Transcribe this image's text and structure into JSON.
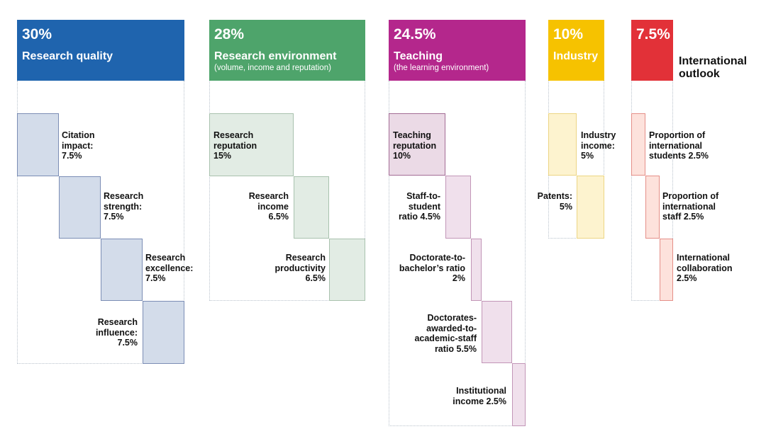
{
  "colors": {
    "blue": "#1f64ae",
    "green": "#4ea46b",
    "magenta": "#b4278c",
    "yellow": "#f6c200",
    "red": "#e23138"
  },
  "pillars": [
    {
      "percent": "30%",
      "title": "Research quality",
      "subtitle": "",
      "metrics": [
        {
          "lines": [
            "Citation",
            "impact:",
            "7.5%"
          ]
        },
        {
          "lines": [
            "Research",
            "strength:",
            "7.5%"
          ]
        },
        {
          "lines": [
            "Research",
            "excellence:",
            "7.5%"
          ]
        },
        {
          "lines": [
            "Research",
            "influence:",
            "7.5%"
          ]
        }
      ]
    },
    {
      "percent": "28%",
      "title": "Research environment",
      "subtitle": "(volume, income and reputation)",
      "metrics": [
        {
          "lines": [
            "Research",
            "reputation",
            "15%"
          ]
        },
        {
          "lines": [
            "Research",
            "income",
            "6.5%"
          ]
        },
        {
          "lines": [
            "Research",
            "productivity",
            "6.5%"
          ]
        }
      ]
    },
    {
      "percent": "24.5%",
      "title": "Teaching",
      "subtitle": "(the learning environment)",
      "metrics": [
        {
          "lines": [
            "Teaching",
            "reputation",
            "10%"
          ]
        },
        {
          "lines": [
            "Staff-to-",
            "student",
            "ratio 4.5%"
          ]
        },
        {
          "lines": [
            "Doctorate-to-",
            "bachelor’s ratio",
            "2%"
          ]
        },
        {
          "lines": [
            "Doctorates-",
            "awarded-to-",
            "academic-staff",
            "ratio 5.5%"
          ]
        },
        {
          "lines": [
            "Institutional",
            "income 2.5%"
          ]
        }
      ]
    },
    {
      "percent": "10%",
      "title": "Industry",
      "subtitle": "",
      "metrics": [
        {
          "lines": [
            "Industry",
            "income:",
            "5%"
          ]
        },
        {
          "lines": [
            "Patents:",
            "5%"
          ]
        }
      ]
    },
    {
      "percent": "7.5%",
      "title": "International outlook",
      "title_lines": [
        "International",
        "outlook"
      ],
      "subtitle": "",
      "metrics": [
        {
          "lines": [
            "Proportion of",
            "international",
            "students 2.5%"
          ]
        },
        {
          "lines": [
            "Proportion of",
            "international",
            "staff 2.5%"
          ]
        },
        {
          "lines": [
            "International",
            "collaboration",
            "2.5%"
          ]
        }
      ]
    }
  ]
}
